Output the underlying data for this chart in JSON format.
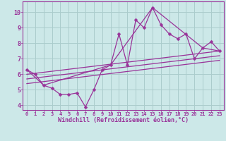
{
  "background_color": "#cce8e8",
  "grid_color": "#aacccc",
  "line_color": "#993399",
  "marker_color": "#993399",
  "xlim": [
    -0.5,
    23.5
  ],
  "ylim": [
    3.7,
    10.7
  ],
  "xlabel": "Windchill (Refroidissement éolien,°C)",
  "xlabel_color": "#993399",
  "xticks": [
    0,
    1,
    2,
    3,
    4,
    5,
    6,
    7,
    8,
    9,
    10,
    11,
    12,
    13,
    14,
    15,
    16,
    17,
    18,
    19,
    20,
    21,
    22,
    23
  ],
  "yticks": [
    4,
    5,
    6,
    7,
    8,
    9,
    10
  ],
  "series1_x": [
    0,
    1,
    2,
    3,
    4,
    5,
    6,
    7,
    8,
    9,
    10,
    11,
    12,
    13,
    14,
    15,
    16,
    17,
    18,
    19,
    20,
    21,
    22,
    23
  ],
  "series1_y": [
    6.3,
    6.0,
    5.3,
    5.1,
    4.7,
    4.7,
    4.8,
    3.9,
    5.0,
    6.3,
    6.6,
    8.6,
    6.6,
    9.5,
    9.0,
    10.3,
    9.2,
    8.6,
    8.3,
    8.6,
    7.0,
    7.7,
    8.1,
    7.5
  ],
  "series2_x": [
    0,
    2,
    10,
    15,
    21,
    23
  ],
  "series2_y": [
    6.3,
    5.3,
    6.6,
    10.3,
    7.7,
    7.5
  ],
  "series3_x": [
    0,
    23
  ],
  "series3_y": [
    6.0,
    7.5
  ],
  "series4_x": [
    0,
    23
  ],
  "series4_y": [
    5.7,
    7.2
  ],
  "series5_x": [
    0,
    23
  ],
  "series5_y": [
    5.4,
    6.9
  ]
}
